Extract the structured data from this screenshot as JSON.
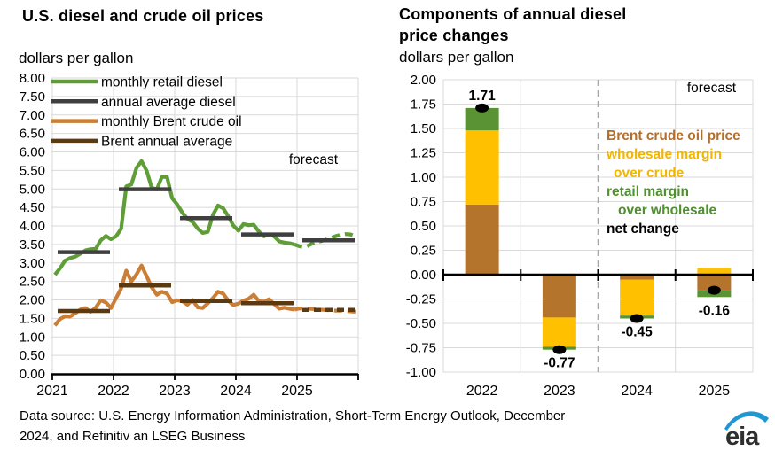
{
  "footer": {
    "source_lines": [
      "Data source: U.S. Energy Information Administration, Short-Term Energy Outlook, December",
      "2024, and Refinitiv an LSEG Business"
    ],
    "logo_text": "eia",
    "logo_text_color": "#2f2f2f",
    "logo_swoosh_color": "#2096d3"
  },
  "chart_data": [
    {
      "type": "line",
      "title": "U.S. diesel and crude oil prices",
      "ylabel": "dollars per gallon",
      "forecast_label": "forecast",
      "ylim": [
        0,
        8
      ],
      "ytick_step": 0.5,
      "x_tick_labels": [
        "2021",
        "2022",
        "2023",
        "2024",
        "2025"
      ],
      "x_range": [
        "2021-01",
        "2025-12"
      ],
      "forecast_start_index": 48,
      "grid": true,
      "legend_position": "top-left-inside",
      "legend": [
        {
          "name": "monthly retail diesel",
          "color": "#5f9d36"
        },
        {
          "name": "annual average diesel",
          "color": "#3f3f3f"
        },
        {
          "name": "monthly Brent crude oil",
          "color": "#ca7e36"
        },
        {
          "name": "Brent annual average",
          "color": "#5c3a11"
        }
      ],
      "series": [
        {
          "name": "monthly retail diesel",
          "kind": "monthly",
          "color": "#5f9d36",
          "values": [
            2.68,
            2.85,
            3.06,
            3.13,
            3.17,
            3.25,
            3.34,
            3.37,
            3.38,
            3.61,
            3.73,
            3.64,
            3.72,
            3.92,
            5.07,
            5.12,
            5.57,
            5.75,
            5.49,
            5.03,
            4.99,
            5.33,
            5.32,
            4.75,
            4.58,
            4.36,
            4.19,
            4.11,
            3.93,
            3.81,
            3.84,
            4.3,
            4.55,
            4.48,
            4.26,
            4.01,
            3.87,
            4.05,
            4.02,
            4.03,
            3.85,
            3.72,
            3.77,
            3.72,
            3.58,
            3.55,
            3.53,
            3.5,
            3.45,
            3.42,
            3.49,
            3.56,
            3.58,
            3.62,
            3.67,
            3.72,
            3.76,
            3.78,
            3.77,
            3.72
          ]
        },
        {
          "name": "annual average diesel",
          "kind": "annual",
          "color": "#3f3f3f",
          "values": [
            3.29,
            4.99,
            4.21,
            3.77,
            3.61
          ],
          "dashed_years": []
        },
        {
          "name": "monthly Brent crude oil",
          "kind": "monthly",
          "color": "#ca7e36",
          "values": [
            1.31,
            1.48,
            1.56,
            1.55,
            1.64,
            1.74,
            1.78,
            1.68,
            1.79,
            1.99,
            1.93,
            1.78,
            2.05,
            2.31,
            2.79,
            2.5,
            2.69,
            2.93,
            2.64,
            2.34,
            2.14,
            2.22,
            2.17,
            1.94,
            1.99,
            1.97,
            1.87,
            2.0,
            1.8,
            1.78,
            1.91,
            2.05,
            2.22,
            2.17,
            1.98,
            1.86,
            1.9,
            1.98,
            2.03,
            2.14,
            1.97,
            1.95,
            2.02,
            1.89,
            1.76,
            1.79,
            1.76,
            1.74,
            1.77,
            1.76,
            1.76,
            1.75,
            1.74,
            1.73,
            1.72,
            1.71,
            1.71,
            1.7,
            1.69,
            1.68
          ]
        },
        {
          "name": "Brent annual average",
          "kind": "annual",
          "color": "#5c3a11",
          "values": [
            1.7,
            2.39,
            1.97,
            1.91,
            1.73
          ],
          "dashed_years": [
            4
          ]
        }
      ]
    },
    {
      "type": "bar",
      "title": "Components of annual diesel price changes",
      "title_lines": [
        "Components of annual diesel",
        "price changes"
      ],
      "ylabel": "dollars per gallon",
      "forecast_label": "forecast",
      "ylim": [
        -1,
        2
      ],
      "ytick_step": 0.25,
      "categories": [
        "2022",
        "2023",
        "2024",
        "2025"
      ],
      "forecast_divider_after_category": "2023",
      "grid": true,
      "series": [
        {
          "name": "Brent crude oil price",
          "color": "#b5742c",
          "values": [
            0.72,
            -0.44,
            -0.05,
            -0.16
          ]
        },
        {
          "name": "wholesale margin over crude",
          "color": "#ffc000",
          "values": [
            0.76,
            -0.3,
            -0.37,
            0.07
          ]
        },
        {
          "name": "retail margin over wholesale",
          "color": "#5a9334",
          "values": [
            0.23,
            -0.03,
            -0.03,
            -0.07
          ]
        }
      ],
      "net_change": {
        "name": "net change",
        "color": "#000000",
        "values": [
          1.71,
          -0.77,
          -0.45,
          -0.16
        ]
      },
      "bar_labels": [
        "1.71",
        "-0.77",
        "-0.45",
        "-0.16"
      ],
      "legend_lines": [
        {
          "text": "Brent crude oil price",
          "color": "#b46f2a",
          "indent": 0
        },
        {
          "text": "wholesale margin",
          "color": "#f2b600",
          "indent": 0
        },
        {
          "text": "over crude",
          "color": "#f2b600",
          "indent": 8
        },
        {
          "text": "retail margin",
          "color": "#4e8f2e",
          "indent": 0
        },
        {
          "text": "over wholesale",
          "color": "#4e8f2e",
          "indent": 13
        },
        {
          "text": "net change",
          "color": "#000000",
          "indent": 0
        }
      ]
    }
  ]
}
